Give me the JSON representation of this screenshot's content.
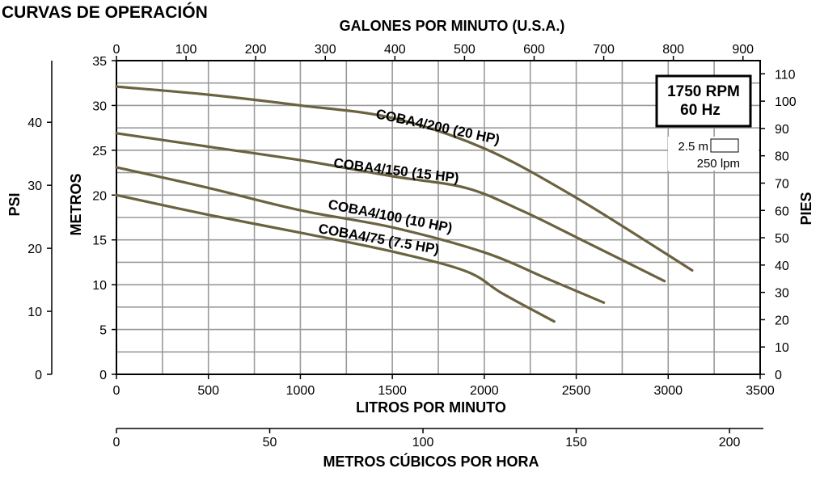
{
  "page_title": "CURVAS DE OPERACIÓN",
  "chart_data": {
    "type": "line",
    "title": "CURVAS DE OPERACIÓN",
    "xlabel": "LITROS POR MINUTO",
    "ylabel": "METROS",
    "xlim": [
      0,
      3500
    ],
    "ylim": [
      0,
      35
    ],
    "x_ticks": [
      0,
      500,
      1000,
      1500,
      2000,
      2500,
      3000,
      3500
    ],
    "y_ticks": [
      0,
      5,
      10,
      15,
      20,
      25,
      30,
      35
    ],
    "grid": true,
    "series": [
      {
        "name": "COBA4/200 (20 HP)",
        "x": [
          0,
          500,
          1000,
          1500,
          2000,
          2500,
          3130
        ],
        "y": [
          32.1,
          31.2,
          30.0,
          28.6,
          25.2,
          19.7,
          11.6
        ]
      },
      {
        "name": "COBA4/150 (15 HP)",
        "x": [
          0,
          500,
          1000,
          1500,
          1900,
          2200,
          2500,
          2980
        ],
        "y": [
          26.9,
          25.4,
          23.9,
          22.1,
          20.8,
          18.3,
          15.3,
          10.4
        ]
      },
      {
        "name": "COBA4/100 (10 HP)",
        "x": [
          0,
          500,
          1000,
          1500,
          2000,
          2350,
          2650
        ],
        "y": [
          23.1,
          20.8,
          18.3,
          16.4,
          13.6,
          10.6,
          8.0
        ]
      },
      {
        "name": "COBA4/75 (7.5 HP)",
        "x": [
          0,
          500,
          1000,
          1500,
          1900,
          2100,
          2380
        ],
        "y": [
          20.0,
          17.8,
          15.8,
          13.7,
          11.5,
          9.0,
          5.9
        ]
      }
    ],
    "secondary_axes": {
      "top": {
        "label": "GALONES POR MINUTO (U.S.A.)",
        "ticks": [
          0,
          100,
          200,
          300,
          400,
          500,
          600,
          700,
          800,
          900
        ]
      },
      "left_outer": {
        "label": "PSI",
        "ticks": [
          0,
          10,
          20,
          30,
          40
        ]
      },
      "right": {
        "label": "PIES",
        "ticks": [
          0,
          10,
          20,
          30,
          40,
          50,
          60,
          70,
          80,
          90,
          100,
          110
        ]
      },
      "bottom_second": {
        "label": "METROS CÚBICOS POR HORA",
        "ticks": [
          0,
          50,
          100,
          150,
          200
        ]
      }
    },
    "rpm_box": {
      "line1": "1750 RPM",
      "line2": "60 Hz"
    },
    "scale_key": {
      "height_label": "2.5 m",
      "flow_label": "250 lpm"
    }
  }
}
